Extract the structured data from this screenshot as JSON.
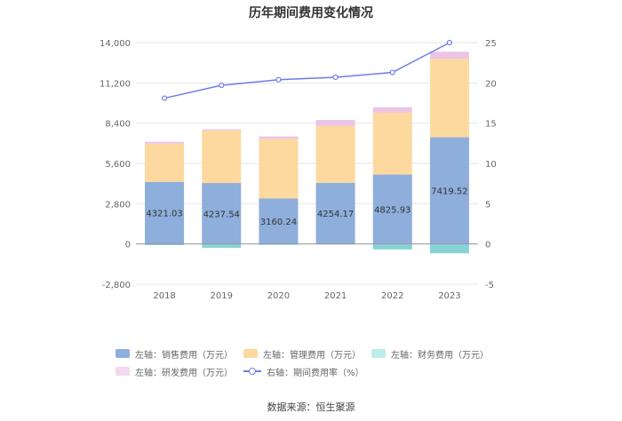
{
  "chart_data": {
    "type": "bar",
    "title": "历年期间费用变化情况",
    "categories": [
      "2018",
      "2019",
      "2020",
      "2021",
      "2022",
      "2023"
    ],
    "left_axis": {
      "min": -2800,
      "max": 14000,
      "ticks": [
        "-2,800",
        "0",
        "2,800",
        "5,600",
        "8,400",
        "11,200",
        "14,000"
      ],
      "tick_values": [
        -2800,
        0,
        2800,
        5600,
        8400,
        11200,
        14000
      ]
    },
    "right_axis": {
      "min": -5,
      "max": 25,
      "ticks": [
        "-5",
        "0",
        "5",
        "10",
        "15",
        "20",
        "25"
      ],
      "tick_values": [
        -5,
        0,
        5,
        10,
        15,
        20,
        25
      ]
    },
    "series": [
      {
        "name": "左轴：销售费用（万元）",
        "kind": "bar",
        "color": "#8eaedc",
        "values": [
          4321.03,
          4237.54,
          3160.24,
          4254.17,
          4825.93,
          7419.52
        ],
        "labels": [
          "4321.03",
          "4237.54",
          "3160.24",
          "4254.17",
          "4825.93",
          "7419.52"
        ]
      },
      {
        "name": "左轴：管理费用（万元）",
        "kind": "bar",
        "color": "#fdd9a0",
        "values": [
          2650,
          3650,
          4150,
          3950,
          4300,
          5450
        ]
      },
      {
        "name": "左轴：财务费用（万元）",
        "kind": "bar",
        "color": "#86d3d6",
        "values": [
          -80,
          -270,
          -60,
          -40,
          -380,
          -650
        ]
      },
      {
        "name": "左轴：研发费用（万元）",
        "kind": "bar",
        "color": "#ecc5e4",
        "values": [
          130,
          80,
          170,
          420,
          380,
          500
        ]
      },
      {
        "name": "右轴：期间费用率（%）",
        "kind": "line",
        "color": "#6f7ce8",
        "values": [
          18.1,
          19.7,
          20.4,
          20.7,
          21.3,
          25.0
        ]
      }
    ]
  },
  "source": "数据来源：恒生聚源"
}
